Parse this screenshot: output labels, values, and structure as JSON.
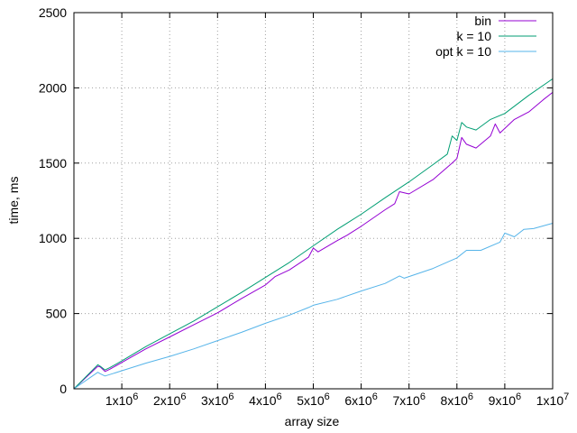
{
  "chart_data": {
    "type": "line",
    "title": "",
    "xlabel": "array size",
    "ylabel": "time, ms",
    "xlim": [
      0,
      10000000
    ],
    "ylim": [
      0,
      2500
    ],
    "grid": true,
    "legend_position": "top-right",
    "x_ticks": [
      {
        "value": 1000000,
        "base": "1x10",
        "exp": "6"
      },
      {
        "value": 2000000,
        "base": "2x10",
        "exp": "6"
      },
      {
        "value": 3000000,
        "base": "3x10",
        "exp": "6"
      },
      {
        "value": 4000000,
        "base": "4x10",
        "exp": "6"
      },
      {
        "value": 5000000,
        "base": "5x10",
        "exp": "6"
      },
      {
        "value": 6000000,
        "base": "6x10",
        "exp": "6"
      },
      {
        "value": 7000000,
        "base": "7x10",
        "exp": "6"
      },
      {
        "value": 8000000,
        "base": "8x10",
        "exp": "6"
      },
      {
        "value": 9000000,
        "base": "9x10",
        "exp": "6"
      },
      {
        "value": 10000000,
        "base": "1x10",
        "exp": "7"
      }
    ],
    "y_ticks": [
      "0",
      "500",
      "1000",
      "1500",
      "2000",
      "2500"
    ],
    "series": [
      {
        "name": "bin",
        "color": "#9400d3",
        "x": [
          0,
          500000,
          550000,
          650000,
          750000,
          1000000,
          1500000,
          2000000,
          2500000,
          3000000,
          3500000,
          4000000,
          4200000,
          4500000,
          4900000,
          5000000,
          5100000,
          5500000,
          5700000,
          6000000,
          6500000,
          6700000,
          6800000,
          7000000,
          7500000,
          7900000,
          8000000,
          8100000,
          8200000,
          8400000,
          8700000,
          8800000,
          8900000,
          9000000,
          9200000,
          9500000,
          9800000,
          10000000
        ],
        "y": [
          0,
          150,
          145,
          115,
          130,
          175,
          265,
          345,
          425,
          505,
          600,
          690,
          745,
          790,
          875,
          935,
          910,
          985,
          1020,
          1080,
          1190,
          1230,
          1310,
          1295,
          1390,
          1500,
          1530,
          1670,
          1625,
          1600,
          1680,
          1760,
          1700,
          1730,
          1790,
          1840,
          1920,
          1970
        ]
      },
      {
        "name": "k = 10",
        "color": "#009e73",
        "x": [
          0,
          500000,
          550000,
          650000,
          750000,
          1000000,
          1500000,
          2000000,
          2500000,
          3000000,
          3500000,
          4000000,
          4500000,
          5000000,
          5500000,
          6000000,
          6500000,
          7000000,
          7500000,
          7800000,
          7900000,
          8000000,
          8100000,
          8200000,
          8400000,
          8700000,
          9000000,
          9500000,
          10000000
        ],
        "y": [
          0,
          160,
          150,
          125,
          140,
          185,
          280,
          365,
          450,
          545,
          640,
          740,
          840,
          950,
          1060,
          1160,
          1270,
          1375,
          1490,
          1560,
          1680,
          1650,
          1770,
          1740,
          1720,
          1790,
          1830,
          1950,
          2060
        ]
      },
      {
        "name": "opt k = 10",
        "color": "#56b4e9",
        "x": [
          0,
          500000,
          550000,
          650000,
          750000,
          1000000,
          1500000,
          2000000,
          2500000,
          3000000,
          3500000,
          4000000,
          4500000,
          4900000,
          5000000,
          5500000,
          6000000,
          6500000,
          6800000,
          6900000,
          7500000,
          8000000,
          8200000,
          8500000,
          8900000,
          9000000,
          9200000,
          9400000,
          9600000,
          10000000
        ],
        "y": [
          0,
          110,
          100,
          85,
          95,
          120,
          170,
          215,
          265,
          320,
          375,
          435,
          490,
          540,
          555,
          595,
          650,
          700,
          750,
          735,
          800,
          870,
          920,
          920,
          975,
          1035,
          1010,
          1060,
          1065,
          1100
        ]
      }
    ]
  }
}
